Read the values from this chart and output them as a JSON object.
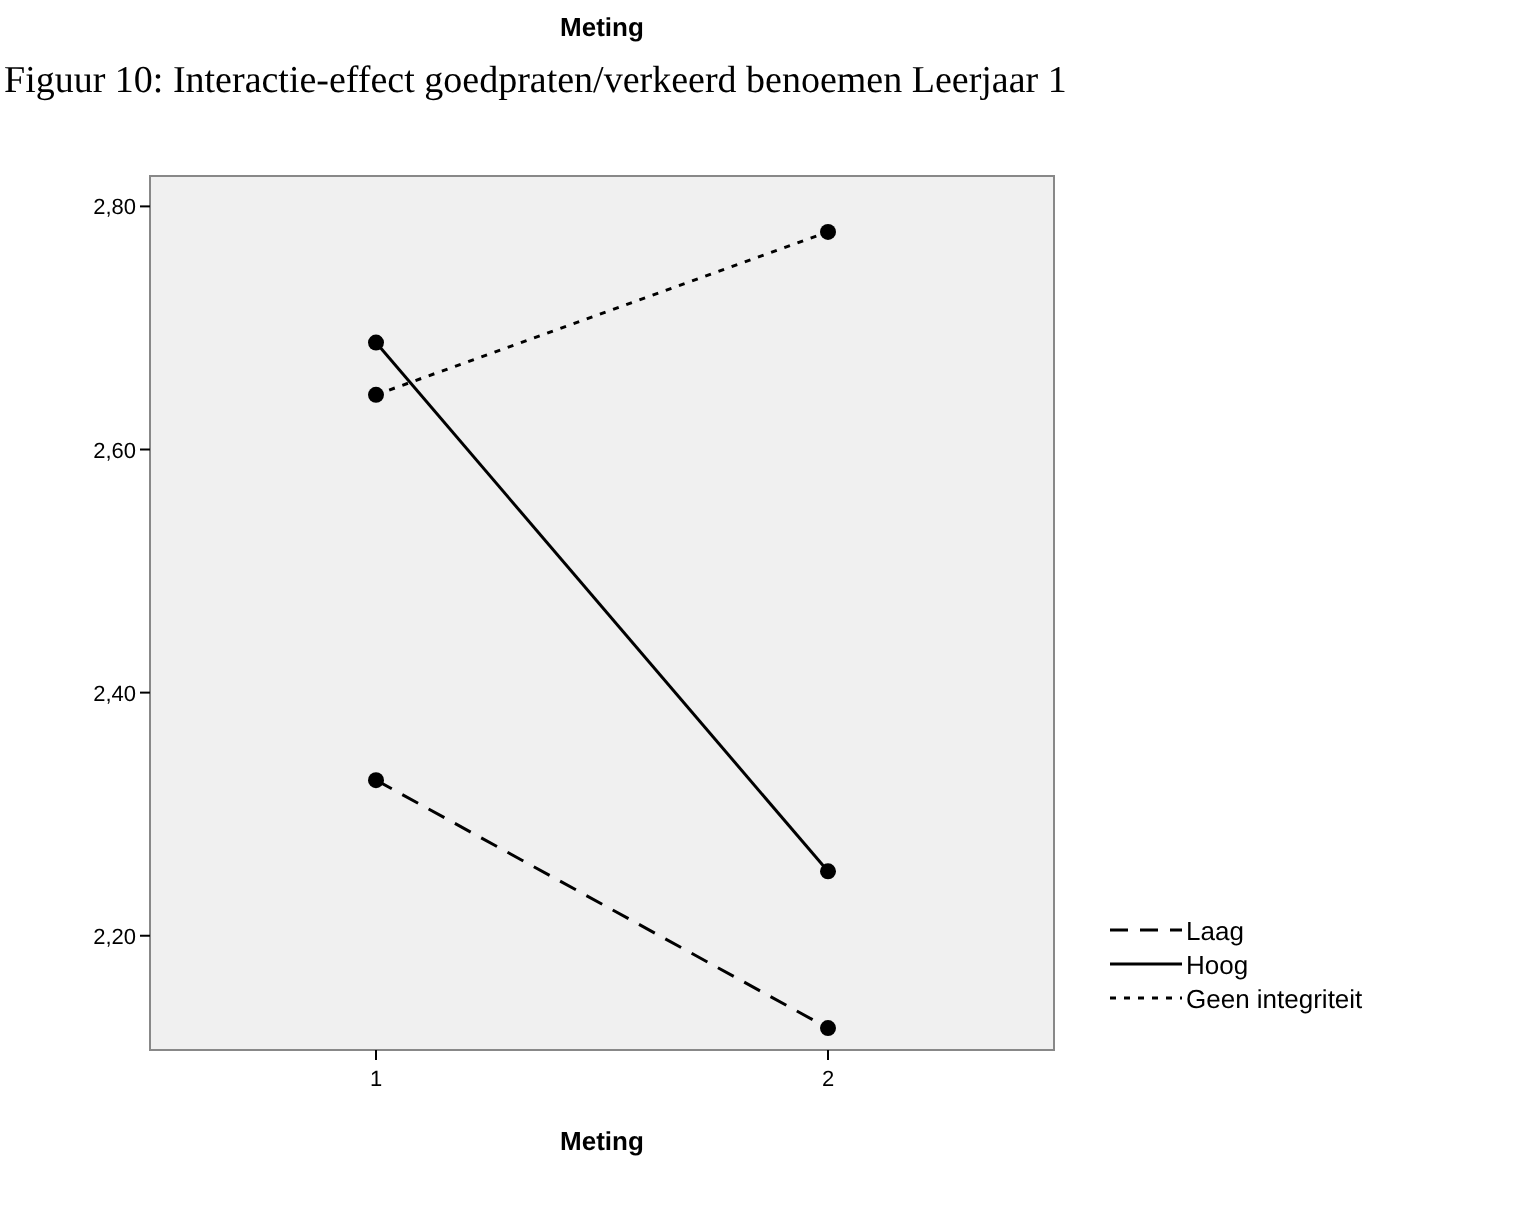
{
  "chart_data": {
    "type": "line",
    "title": "Meting",
    "xlabel": "Meting",
    "annotations": [
      "Figuur 10: Interactie-effect goedpraten/verkeerd benoemen Leerjaar 1"
    ],
    "x": [
      1,
      2
    ],
    "xlim": [
      0.5,
      2.5
    ],
    "xticks": [
      1,
      2
    ],
    "ylim": [
      2.106,
      2.825
    ],
    "yticks": [
      {
        "value": 2.2,
        "label": "2,20"
      },
      {
        "value": 2.4,
        "label": "2,40"
      },
      {
        "value": 2.6,
        "label": "2,60"
      },
      {
        "value": 2.8,
        "label": "2,80"
      }
    ],
    "marker": "circle",
    "legend": "right",
    "series": [
      {
        "name": "Laag",
        "color": "#000000",
        "line_style": "dashed",
        "values": [
          2.328,
          2.124
        ]
      },
      {
        "name": "Hoog",
        "color": "#000000",
        "line_style": "solid",
        "values": [
          2.688,
          2.253
        ]
      },
      {
        "name": "Geen integriteit",
        "color": "#000000",
        "line_style": "dotted",
        "values": [
          2.645,
          2.779
        ]
      }
    ]
  }
}
